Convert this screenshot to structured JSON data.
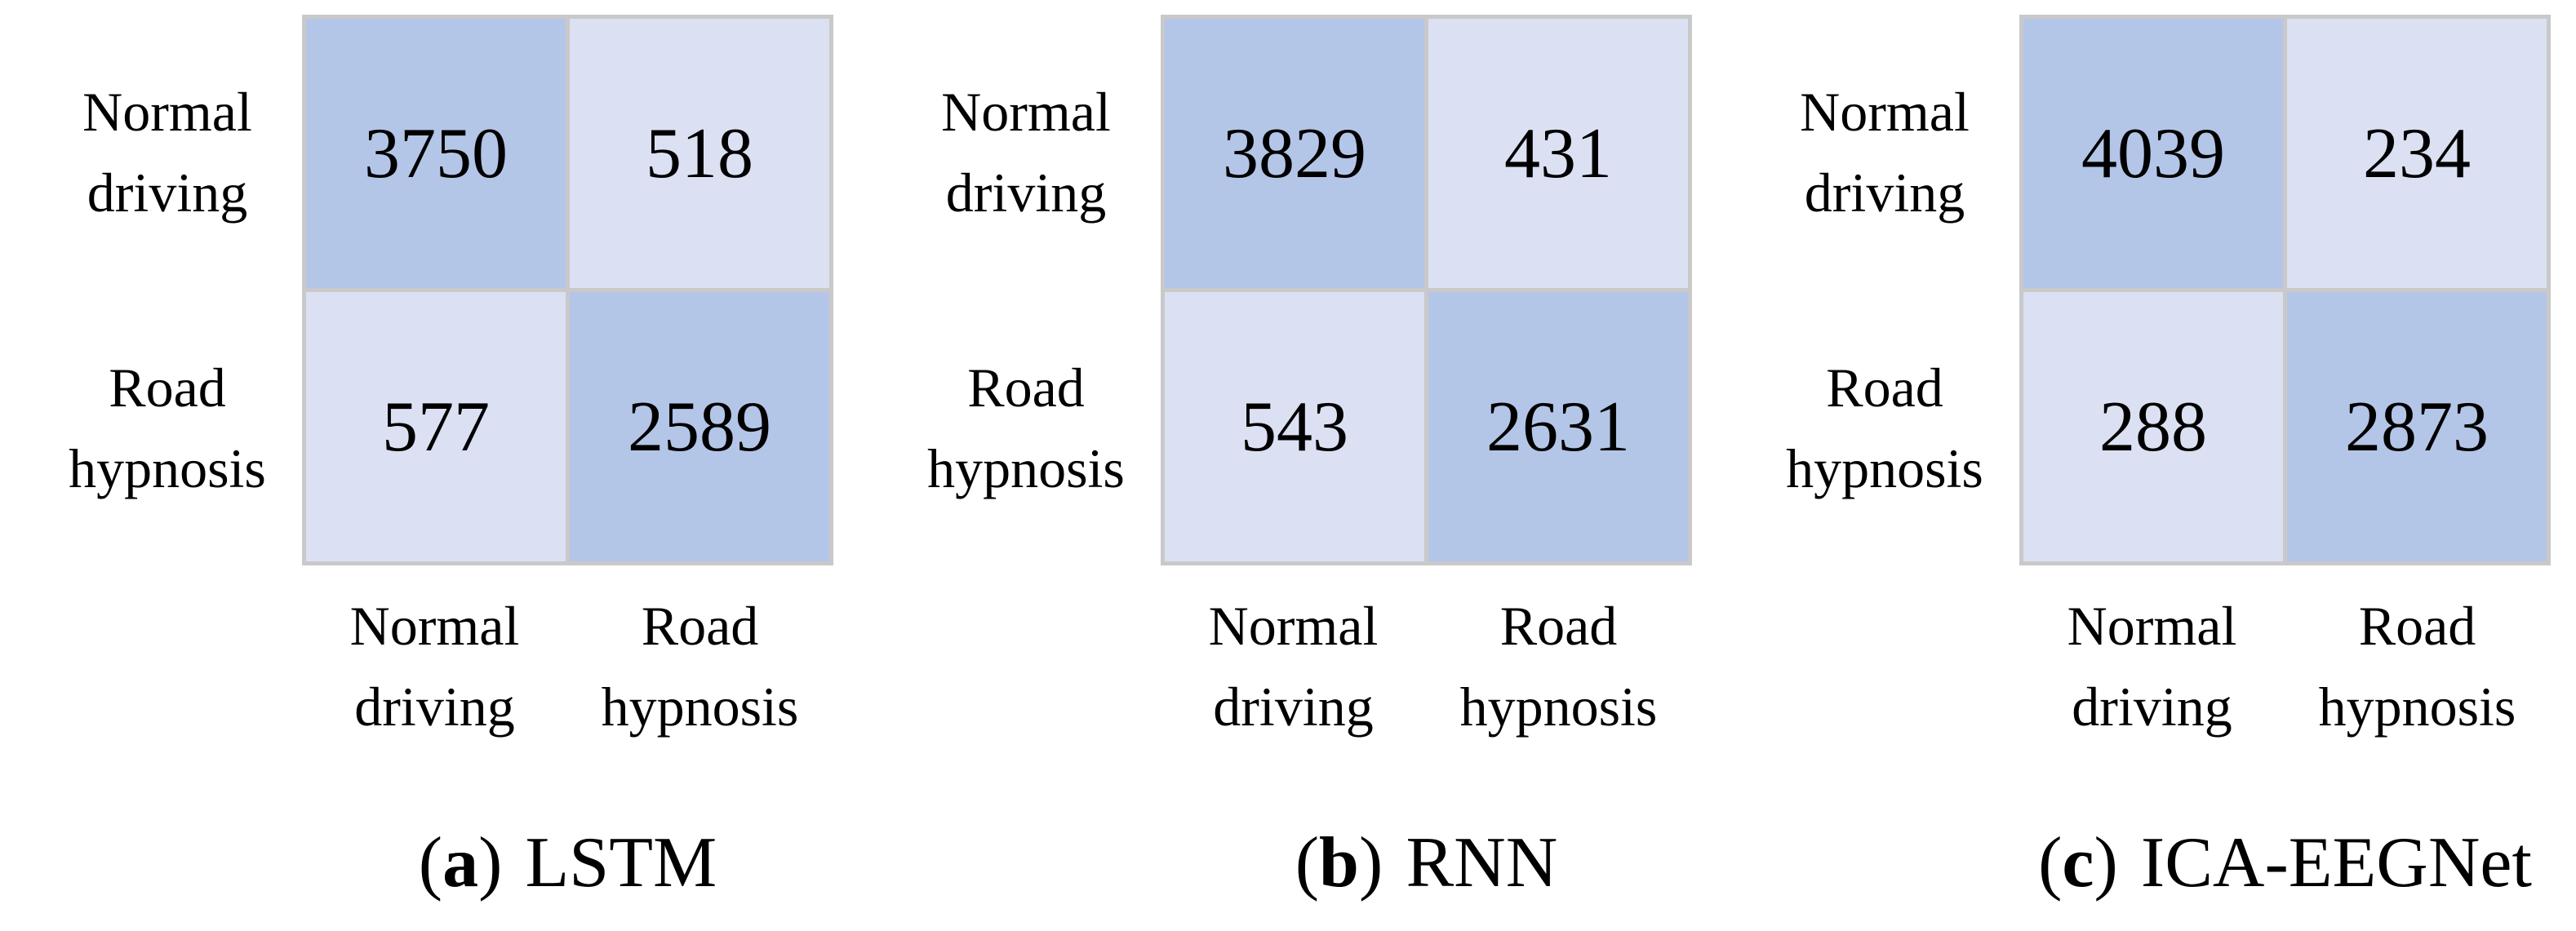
{
  "figure": {
    "colors": {
      "high_cell": "#b4c6e7",
      "low_cell": "#dbe1f3",
      "grid_border": "#c9c9c9"
    },
    "panels": [
      {
        "row_labels": [
          "Normal driving",
          "Road hypnosis"
        ],
        "col_labels": [
          "Normal driving",
          "Road hypnosis"
        ],
        "caption": {
          "open": "(",
          "letter": "a",
          "close": ")",
          "label": "LSTM"
        }
      },
      {
        "row_labels": [
          "Normal driving",
          "Road hypnosis"
        ],
        "col_labels": [
          "Normal driving",
          "Road hypnosis"
        ],
        "caption": {
          "open": "(",
          "letter": "b",
          "close": ")",
          "label": "RNN"
        }
      },
      {
        "row_labels": [
          "Normal driving",
          "Road hypnosis"
        ],
        "col_labels": [
          "Normal driving",
          "Road hypnosis"
        ],
        "caption": {
          "open": "(",
          "letter": "c",
          "close": ")",
          "label": "ICA-EEGNet"
        }
      }
    ]
  },
  "chart_data": [
    {
      "type": "heatmap",
      "title": "(a) LSTM",
      "rows": [
        "Normal driving",
        "Road hypnosis"
      ],
      "cols": [
        "Normal driving",
        "Road hypnosis"
      ],
      "values": [
        [
          3750,
          518
        ],
        [
          577,
          2589
        ]
      ],
      "cell_shading": [
        [
          "high",
          "low"
        ],
        [
          "low",
          "high"
        ]
      ],
      "legend": "none",
      "grid": "gray cell borders"
    },
    {
      "type": "heatmap",
      "title": "(b) RNN",
      "rows": [
        "Normal driving",
        "Road hypnosis"
      ],
      "cols": [
        "Normal driving",
        "Road hypnosis"
      ],
      "values": [
        [
          3829,
          431
        ],
        [
          543,
          2631
        ]
      ],
      "cell_shading": [
        [
          "high",
          "low"
        ],
        [
          "low",
          "high"
        ]
      ],
      "legend": "none",
      "grid": "gray cell borders"
    },
    {
      "type": "heatmap",
      "title": "(c) ICA-EEGNet",
      "rows": [
        "Normal driving",
        "Road hypnosis"
      ],
      "cols": [
        "Normal driving",
        "Road hypnosis"
      ],
      "values": [
        [
          4039,
          234
        ],
        [
          288,
          2873
        ]
      ],
      "cell_shading": [
        [
          "high",
          "low"
        ],
        [
          "low",
          "high"
        ]
      ],
      "legend": "none",
      "grid": "gray cell borders"
    }
  ]
}
